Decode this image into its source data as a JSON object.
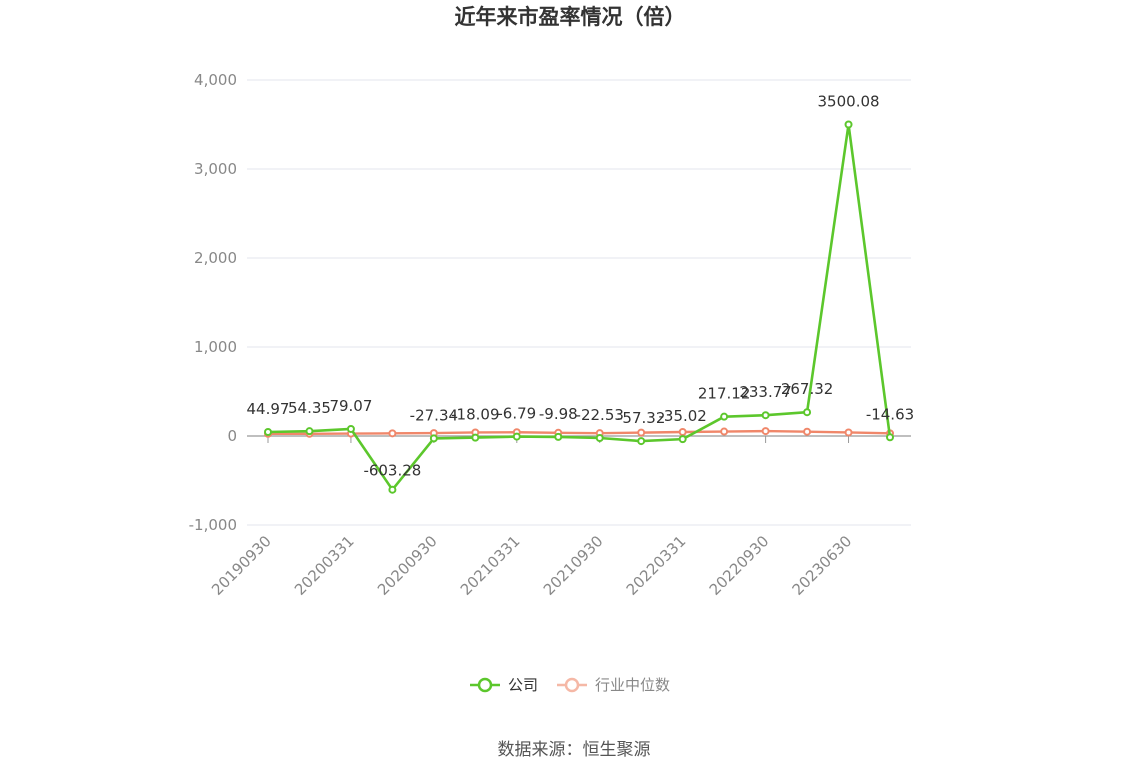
{
  "chart_data": {
    "type": "line",
    "title": "近年来市盈率情况（倍）",
    "ylim": [
      -1000,
      4000
    ],
    "yticks": [
      4000,
      3000,
      2000,
      1000,
      0,
      -1000
    ],
    "ytick_labels": [
      "4,000",
      "3,000",
      "2,000",
      "1,000",
      "0",
      "-1,000"
    ],
    "xtick_labels": [
      "20190930",
      "20200331",
      "20200930",
      "20210331",
      "20210930",
      "20220331",
      "20220930",
      "20230630"
    ],
    "grid": true,
    "legend_position": "bottom",
    "series": [
      {
        "name": "公司",
        "color": "#5cc72c",
        "values": [
          44.97,
          54.35,
          79.07,
          -603.28,
          -27.34,
          -18.09,
          -6.79,
          -9.98,
          -22.53,
          -57.32,
          -35.02,
          217.12,
          233.77,
          267.32,
          3500.08,
          -14.63
        ],
        "labels": [
          "44.97",
          "54.35",
          "79.07",
          "-603.28",
          "-27.34",
          "-18.09",
          "-6.79",
          "-9.98",
          "-22.53",
          "-57.32",
          "-35.02",
          "217.12",
          "233.77",
          "267.32",
          "3500.08",
          "-14.63"
        ]
      },
      {
        "name": "行业中位数",
        "color": "#f0876a",
        "values": [
          25,
          25,
          27,
          30,
          33,
          40,
          42,
          36,
          32,
          38,
          45,
          50,
          55,
          48,
          40,
          30
        ]
      }
    ]
  },
  "source": "数据来源：恒生聚源"
}
